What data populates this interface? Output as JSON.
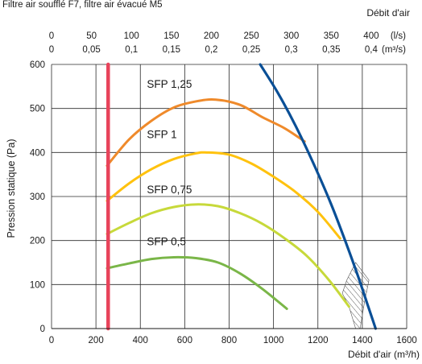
{
  "caption": "Filtre air soufflé F7, filtre air évacué M5",
  "chart_data": {
    "type": "line",
    "title": "Filtre air soufflé F7, filtre air évacué M5",
    "xlabel": "Débit d'air (m³/h)",
    "x2label": "Débit d'air",
    "ylabel": "Pression statique (Pa)",
    "xlim": [
      0,
      1600
    ],
    "ylim": [
      0,
      600
    ],
    "x_ticks": [
      0,
      200,
      400,
      600,
      800,
      1000,
      1200,
      1400,
      1600
    ],
    "y_ticks": [
      0,
      100,
      200,
      300,
      400,
      500,
      600
    ],
    "top_axis_ls": {
      "ticks": [
        0,
        50,
        100,
        150,
        200,
        250,
        300,
        350,
        400
      ],
      "labels": [
        "0",
        "50",
        "100",
        "150",
        "200",
        "250",
        "300",
        "350",
        "400"
      ],
      "unit": "(l/s)"
    },
    "top_axis_m3s": {
      "labels": [
        "0",
        "0,05",
        "0,1",
        "0,15",
        "0,2",
        "0,25",
        "0,3",
        "0,35",
        "0,4"
      ],
      "unit": "(m³/s)"
    },
    "grid": true,
    "series": [
      {
        "name": "SFP 1,25",
        "color": "#ef8a2b",
        "x": [
          250,
          350,
          450,
          550,
          650,
          740,
          850,
          950,
          1050,
          1140
        ],
        "y": [
          370,
          430,
          472,
          502,
          516,
          520,
          508,
          480,
          455,
          425
        ]
      },
      {
        "name": "SFP 1",
        "color": "#ffc20e",
        "x": [
          250,
          350,
          450,
          550,
          650,
          700,
          800,
          900,
          1000,
          1100,
          1200,
          1300
        ],
        "y": [
          290,
          330,
          362,
          385,
          398,
          400,
          395,
          375,
          345,
          310,
          265,
          205
        ]
      },
      {
        "name": "SFP 0,75",
        "color": "#c7d93a",
        "x": [
          250,
          350,
          450,
          550,
          650,
          750,
          850,
          950,
          1050,
          1150,
          1250,
          1340
        ],
        "y": [
          215,
          240,
          262,
          276,
          282,
          278,
          262,
          238,
          205,
          165,
          110,
          50
        ]
      },
      {
        "name": "SFP 0,5",
        "color": "#7ab648",
        "x": [
          250,
          350,
          450,
          550,
          650,
          750,
          850,
          950,
          1060
        ],
        "y": [
          137,
          148,
          158,
          162,
          160,
          150,
          125,
          90,
          45
        ]
      },
      {
        "name": "",
        "color": "#0a4f96",
        "x": [
          940,
          1020,
          1100,
          1180,
          1260,
          1330,
          1380,
          1420,
          1450,
          1460
        ],
        "y": [
          600,
          535,
          460,
          375,
          282,
          190,
          120,
          60,
          15,
          0
        ]
      },
      {
        "name": "",
        "color": "#e8435a",
        "x": [
          255,
          255
        ],
        "y": [
          0,
          600
        ]
      }
    ],
    "annotations": [
      {
        "text": "SFP 1,25",
        "x": 520,
        "y": 540,
        "color": "#ef8a2b"
      },
      {
        "text": "SFP 1",
        "x": 520,
        "y": 425,
        "color": "#ffc20e"
      },
      {
        "text": "SFP 0,75",
        "x": 520,
        "y": 300,
        "color": "#c7d93a"
      },
      {
        "text": "SFP 0,5",
        "x": 520,
        "y": 182,
        "color": "#7ab648"
      }
    ],
    "hatched_region": {
      "x": [
        1310,
        1340,
        1370,
        1390,
        1410,
        1430,
        1370,
        1330
      ],
      "y": [
        80,
        50,
        0,
        0,
        60,
        110,
        150,
        110
      ]
    }
  }
}
